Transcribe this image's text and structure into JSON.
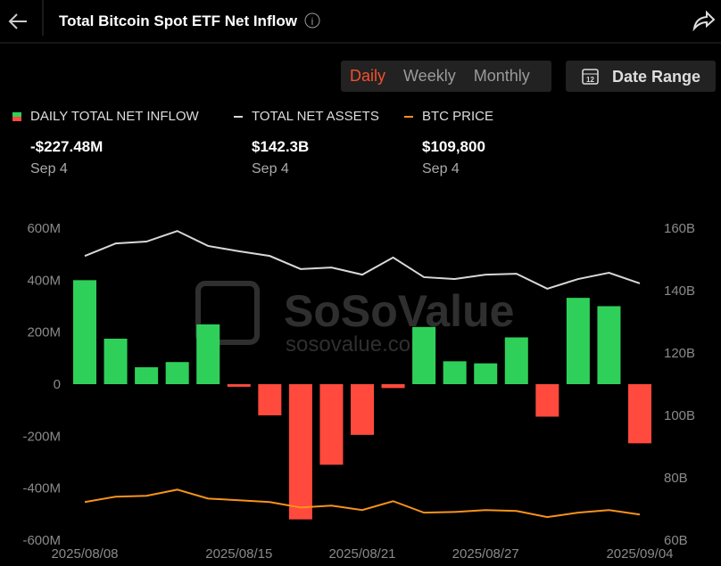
{
  "header": {
    "title": "Total Bitcoin Spot ETF Net Inflow"
  },
  "tabs": [
    "Daily",
    "Weekly",
    "Monthly"
  ],
  "active_tab": 0,
  "date_range": "Date Range",
  "legend_latest": [
    {
      "value": "-$227.48M",
      "date": "Sep 4"
    },
    {
      "value": "$142.3B",
      "date": "Sep 4"
    },
    {
      "value": "$109,800",
      "date": "Sep 4"
    }
  ],
  "watermark": {
    "brand": "SoSoValue",
    "url": "sosovalue.com"
  },
  "chart_data": {
    "type": "bar",
    "categories": [
      "2025/08/08",
      null,
      null,
      null,
      null,
      "2025/08/15",
      null,
      null,
      null,
      "2025/08/21",
      null,
      null,
      null,
      "2025/08/27",
      null,
      null,
      null,
      null,
      "2025/09/04"
    ],
    "ylim": [
      -600,
      600
    ],
    "yticks": [
      {
        "value": 600,
        "label": "600M"
      },
      {
        "value": 400,
        "label": "400M"
      },
      {
        "value": 200,
        "label": "200M"
      },
      0,
      {
        "value": -200,
        "label": "-200M"
      },
      {
        "value": -400,
        "label": "-400M"
      },
      {
        "value": -600,
        "label": "-600M"
      }
    ],
    "y2lim": [
      60,
      160
    ],
    "y2ticks": [
      {
        "value": 160,
        "label": "160B"
      },
      {
        "value": 140,
        "label": "140B"
      },
      {
        "value": 120,
        "label": "120B"
      },
      {
        "value": 100,
        "label": "100B"
      },
      {
        "value": 80,
        "label": "80B"
      },
      {
        "value": 60,
        "label": "60B"
      }
    ],
    "y3lim": [
      96000,
      264000
    ],
    "grid": false,
    "series": [
      {
        "name": "DAILY TOTAL NET INFLOW",
        "type": "bar",
        "color": "#2fd05a",
        "negative_color": "#ff4a3d",
        "values": [
          400,
          175,
          65,
          85,
          230,
          -10,
          -120,
          -520,
          -310,
          -195,
          -15,
          220,
          88,
          80,
          180,
          -125,
          332,
          300,
          -227.48
        ]
      },
      {
        "name": "TOTAL NET ASSETS",
        "type": "line",
        "axis": "y2",
        "color": "#d8d8d8",
        "values": [
          151.1,
          155.1,
          155.7,
          159.1,
          154.3,
          152.6,
          151.1,
          146.9,
          147.4,
          145.1,
          150.6,
          144.3,
          143.7,
          145.1,
          145.4,
          140.6,
          143.7,
          145.7,
          142.3
        ]
      },
      {
        "name": "BTC PRICE",
        "type": "line",
        "axis": "y3",
        "color": "#f7931a",
        "values": [
          116500,
          119400,
          119900,
          123200,
          118400,
          117500,
          116500,
          113600,
          114600,
          112200,
          117000,
          110800,
          111200,
          112200,
          111700,
          108400,
          110800,
          112200,
          109800
        ]
      }
    ]
  }
}
